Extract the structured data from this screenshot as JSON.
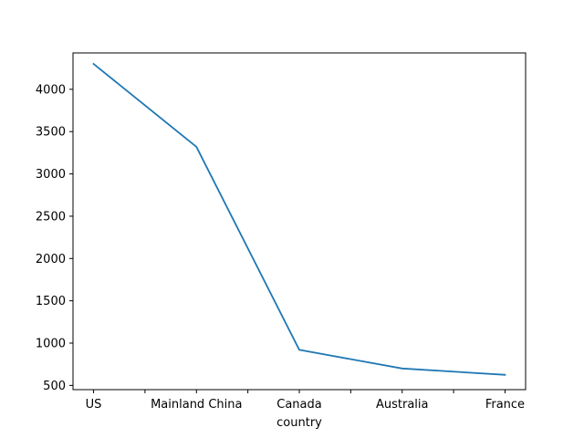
{
  "chart_data": {
    "type": "line",
    "categories": [
      "US",
      "Mainland China",
      "Canada",
      "Australia",
      "France"
    ],
    "series": [
      {
        "values": [
          4300,
          3320,
          920,
          700,
          625
        ]
      }
    ],
    "xlabel": "country",
    "ylabel": "",
    "title": "",
    "ylim": [
      450,
      4430
    ],
    "yticks": [
      500,
      1000,
      1500,
      2000,
      2500,
      3000,
      3500,
      4000
    ],
    "grid": false,
    "line_color": "#1f77b4"
  }
}
